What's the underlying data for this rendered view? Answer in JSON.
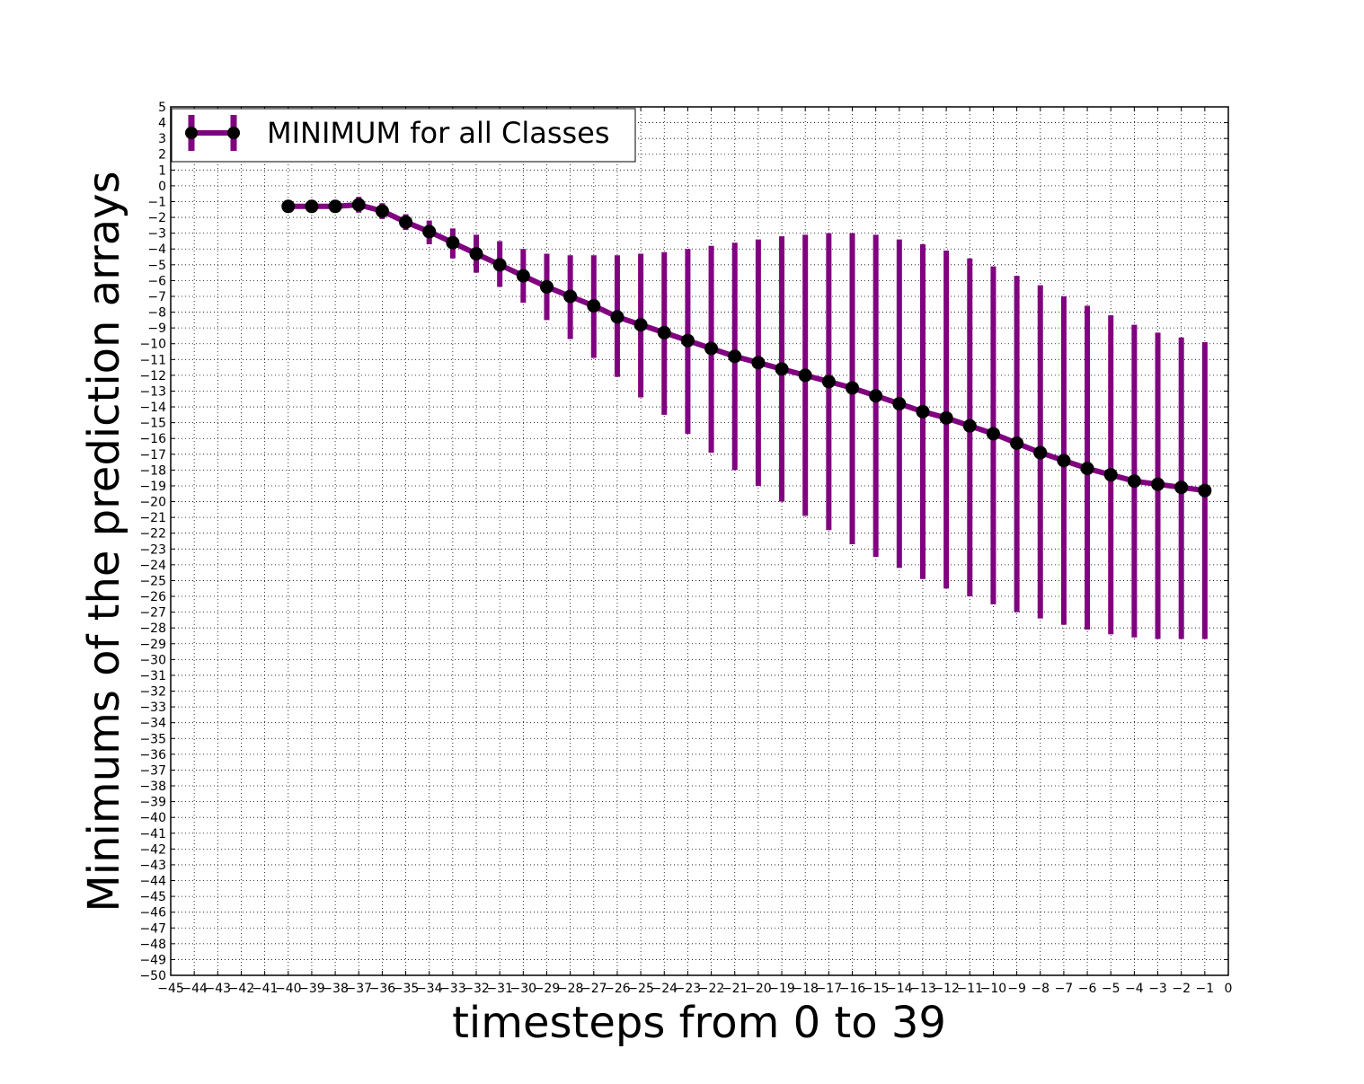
{
  "chart_data": {
    "type": "line",
    "xlabel": "timesteps from 0 to 39",
    "ylabel": "Minimums of the prediction arrays",
    "xlim": [
      -45,
      0
    ],
    "ylim": [
      -50,
      5
    ],
    "grid": true,
    "legend_position": "top-left",
    "x_ticks": [
      -45,
      -44,
      -43,
      -42,
      -41,
      -40,
      -39,
      -38,
      -37,
      -36,
      -35,
      -34,
      -33,
      -32,
      -31,
      -30,
      -29,
      -28,
      -27,
      -26,
      -25,
      -24,
      -23,
      -22,
      -21,
      -20,
      -19,
      -18,
      -17,
      -16,
      -15,
      -14,
      -13,
      -12,
      -11,
      -10,
      -9,
      -8,
      -7,
      -6,
      -5,
      -4,
      -3,
      -2,
      -1,
      0
    ],
    "y_ticks": [
      5,
      4,
      3,
      2,
      1,
      0,
      -1,
      -2,
      -3,
      -4,
      -5,
      -6,
      -7,
      -8,
      -9,
      -10,
      -11,
      -12,
      -13,
      -14,
      -15,
      -16,
      -17,
      -18,
      -19,
      -20,
      -21,
      -22,
      -23,
      -24,
      -25,
      -26,
      -27,
      -28,
      -29,
      -30,
      -31,
      -32,
      -33,
      -34,
      -35,
      -36,
      -37,
      -38,
      -39,
      -40,
      -41,
      -42,
      -43,
      -44,
      -45,
      -46,
      -47,
      -48,
      -49,
      -50
    ],
    "series": [
      {
        "name": "MINIMUM for all Classes",
        "line_color": "#800080",
        "marker_color": "#000000",
        "x": [
          -40,
          -39,
          -38,
          -37,
          -36,
          -35,
          -34,
          -33,
          -32,
          -31,
          -30,
          -29,
          -28,
          -27,
          -26,
          -25,
          -24,
          -23,
          -22,
          -21,
          -20,
          -19,
          -18,
          -17,
          -16,
          -15,
          -14,
          -13,
          -12,
          -11,
          -10,
          -9,
          -8,
          -7,
          -6,
          -5,
          -4,
          -3,
          -2,
          -1
        ],
        "y": [
          -1.3,
          -1.3,
          -1.3,
          -1.2,
          -1.6,
          -2.3,
          -2.9,
          -3.6,
          -4.3,
          -5.0,
          -5.7,
          -6.4,
          -7.0,
          -7.6,
          -8.3,
          -8.8,
          -9.3,
          -9.8,
          -10.3,
          -10.8,
          -11.2,
          -11.6,
          -12.0,
          -12.4,
          -12.8,
          -13.3,
          -13.8,
          -14.3,
          -14.7,
          -15.2,
          -15.7,
          -16.3,
          -16.9,
          -17.4,
          -17.9,
          -18.3,
          -18.7,
          -18.9,
          -19.1,
          -19.3
        ],
        "err_low": [
          -1.3,
          -1.3,
          -1.3,
          -1.7,
          -2.1,
          -2.8,
          -3.7,
          -4.6,
          -5.5,
          -6.4,
          -7.4,
          -8.5,
          -9.7,
          -10.9,
          -12.1,
          -13.4,
          -14.5,
          -15.7,
          -16.9,
          -18.0,
          -19.0,
          -20.0,
          -20.9,
          -21.8,
          -22.7,
          -23.5,
          -24.2,
          -24.9,
          -25.5,
          -26.0,
          -26.5,
          -27.0,
          -27.4,
          -27.8,
          -28.1,
          -28.4,
          -28.6,
          -28.7,
          -28.7,
          -28.7
        ],
        "err_high": [
          -1.3,
          -1.3,
          -1.3,
          -0.7,
          -1.1,
          -1.8,
          -2.2,
          -2.7,
          -3.1,
          -3.5,
          -4.0,
          -4.3,
          -4.4,
          -4.4,
          -4.4,
          -4.3,
          -4.2,
          -4.0,
          -3.8,
          -3.6,
          -3.4,
          -3.2,
          -3.1,
          -3.0,
          -3.0,
          -3.1,
          -3.4,
          -3.7,
          -4.1,
          -4.6,
          -5.1,
          -5.7,
          -6.3,
          -7.0,
          -7.6,
          -8.2,
          -8.8,
          -9.3,
          -9.6,
          -9.9
        ]
      }
    ]
  }
}
